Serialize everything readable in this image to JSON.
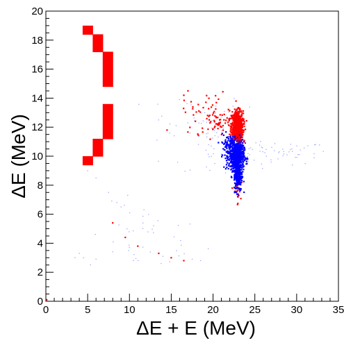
{
  "chart_data": {
    "type": "scatter",
    "title": "",
    "xlabel": "ΔE + E (MeV)",
    "ylabel": "ΔE (MeV)",
    "xlim": [
      0,
      35
    ],
    "ylim": [
      0,
      20
    ],
    "xticks": [
      0,
      5,
      10,
      15,
      20,
      25,
      30,
      35
    ],
    "xtick_labels": [
      "0",
      "5",
      "10",
      "15",
      "20",
      "25",
      "30",
      "35"
    ],
    "yticks": [
      0,
      2,
      4,
      6,
      8,
      10,
      12,
      14,
      16,
      18,
      20
    ],
    "ytick_labels": [
      "0",
      "2",
      "4",
      "6",
      "8",
      "10",
      "12",
      "14",
      "16",
      "18",
      "20"
    ],
    "grid": false,
    "legend": "none",
    "logo": {
      "description": "large red blocky digit '2' drawn with filled bins",
      "color": "#ff0000",
      "cell_size": [
        1.2,
        0.6
      ],
      "cells": [
        [
          5.0,
          18.7
        ],
        [
          6.2,
          18.1
        ],
        [
          6.2,
          17.5
        ],
        [
          7.4,
          16.9
        ],
        [
          7.4,
          16.3
        ],
        [
          7.4,
          15.7
        ],
        [
          7.4,
          15.1
        ],
        [
          7.4,
          13.3
        ],
        [
          7.4,
          12.7
        ],
        [
          7.4,
          12.1
        ],
        [
          7.4,
          11.5
        ],
        [
          6.2,
          10.9
        ],
        [
          6.2,
          10.3
        ],
        [
          5.0,
          9.7
        ]
      ]
    },
    "series": [
      {
        "color": "#ff0000",
        "clusters": [
          {
            "x": 22.9,
            "y": 12.0,
            "sx": 0.35,
            "sy": 0.55,
            "n": 700
          },
          {
            "x": 21.0,
            "y": 12.3,
            "sx": 1.0,
            "sy": 0.5,
            "n": 45
          },
          {
            "x": 19.0,
            "y": 13.0,
            "sx": 1.3,
            "sy": 0.7,
            "n": 40
          },
          {
            "x": 22.9,
            "y": 7.6,
            "sx": 0.2,
            "sy": 0.5,
            "n": 25
          },
          {
            "x": 22.8,
            "y": 9.0,
            "sx": 0.2,
            "sy": 0.6,
            "n": 15
          }
        ],
        "points": [
          [
            16.5,
            14.2
          ],
          [
            17.0,
            14.5
          ],
          [
            14.5,
            11.8
          ],
          [
            8.0,
            5.4
          ],
          [
            9.5,
            4.4
          ],
          [
            11.0,
            3.8
          ],
          [
            13.5,
            3.3
          ],
          [
            15.0,
            3.0
          ],
          [
            16.5,
            2.8
          ],
          [
            0.1,
            0.1
          ]
        ]
      },
      {
        "color": "#0000ff",
        "clusters": [
          {
            "x": 22.8,
            "y": 10.0,
            "sx": 0.45,
            "sy": 0.5,
            "n": 650
          },
          {
            "x": 23.0,
            "y": 8.7,
            "sx": 0.25,
            "sy": 0.55,
            "n": 220
          },
          {
            "x": 21.8,
            "y": 10.8,
            "sx": 0.5,
            "sy": 0.35,
            "n": 80
          }
        ],
        "points": []
      },
      {
        "color": "#9aa6ff",
        "clusters": [
          {
            "x": 27.0,
            "y": 10.2,
            "sx": 3.5,
            "sy": 0.4,
            "n": 70
          },
          {
            "x": 12.0,
            "y": 4.3,
            "sx": 3.5,
            "sy": 1.2,
            "n": 40
          },
          {
            "x": 18.0,
            "y": 12.5,
            "sx": 3.0,
            "sy": 1.0,
            "n": 35
          },
          {
            "x": 20.0,
            "y": 11.0,
            "sx": 3.0,
            "sy": 1.6,
            "n": 30
          }
        ],
        "points": [
          [
            9.0,
            6.5
          ],
          [
            8.5,
            6.8
          ],
          [
            7.5,
            7.5
          ],
          [
            6.0,
            8.5
          ],
          [
            5.0,
            9.0
          ],
          [
            3.5,
            3.0
          ],
          [
            4.0,
            3.3
          ],
          [
            4.5,
            3.0
          ],
          [
            6.0,
            2.9
          ],
          [
            10.0,
            3.7
          ],
          [
            12.5,
            3.4
          ],
          [
            14.0,
            3.1
          ],
          [
            17.5,
            2.9
          ],
          [
            18.5,
            2.8
          ],
          [
            16.0,
            13.9
          ],
          [
            13.5,
            12.5
          ]
        ]
      }
    ]
  }
}
